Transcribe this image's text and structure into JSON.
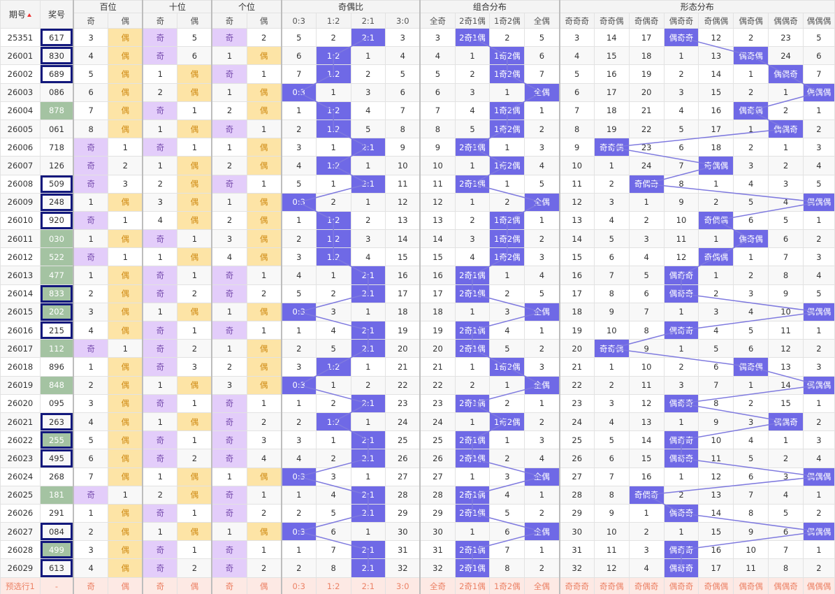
{
  "header": {
    "issue": "期号",
    "award": "奖号",
    "groups": [
      "百位",
      "十位",
      "个位",
      "奇偶比",
      "组合分布",
      "形态分布"
    ],
    "sub": [
      "奇",
      "偶",
      "奇",
      "偶",
      "奇",
      "偶",
      "0:3",
      "1:2",
      "2:1",
      "3:0",
      "全奇",
      "2奇1偶",
      "1奇2偶",
      "全偶",
      "奇奇奇",
      "奇奇偶",
      "奇偶奇",
      "偶奇奇",
      "奇偶偶",
      "偶奇偶",
      "偶偶奇",
      "偶偶偶"
    ]
  },
  "labels": {
    "odd": "奇",
    "even": "偶"
  },
  "rows": [
    {
      "issue": "25351",
      "award": "617",
      "hl": false,
      "sel": true,
      "cells": [
        "3",
        "偶",
        "奇",
        "5",
        "奇",
        "2",
        "5",
        "2",
        "2:1",
        "3",
        "3",
        "2奇1偶",
        "2",
        "5",
        "3",
        "14",
        "17",
        "偶奇奇",
        "12",
        "2",
        "23",
        "5"
      ]
    },
    {
      "issue": "26001",
      "award": "830",
      "hl": false,
      "sel": true,
      "cells": [
        "4",
        "偶",
        "奇",
        "6",
        "1",
        "偶",
        "6",
        "1:2",
        "1",
        "4",
        "4",
        "1",
        "1奇2偶",
        "6",
        "4",
        "15",
        "18",
        "1",
        "13",
        "偶奇偶",
        "24",
        "6"
      ]
    },
    {
      "issue": "26002",
      "award": "689",
      "hl": false,
      "sel": true,
      "cells": [
        "5",
        "偶",
        "1",
        "偶",
        "奇",
        "1",
        "7",
        "1:2",
        "2",
        "5",
        "5",
        "2",
        "1奇2偶",
        "7",
        "5",
        "16",
        "19",
        "2",
        "14",
        "1",
        "偶偶奇",
        "7"
      ]
    },
    {
      "issue": "26003",
      "award": "086",
      "hl": false,
      "sel": false,
      "cells": [
        "6",
        "偶",
        "2",
        "偶",
        "1",
        "偶",
        "0:3",
        "1",
        "3",
        "6",
        "6",
        "3",
        "1",
        "全偶",
        "6",
        "17",
        "20",
        "3",
        "15",
        "2",
        "1",
        "偶偶偶"
      ]
    },
    {
      "issue": "26004",
      "award": "878",
      "hl": true,
      "sel": false,
      "cells": [
        "7",
        "偶",
        "奇",
        "1",
        "2",
        "偶",
        "1",
        "1:2",
        "4",
        "7",
        "7",
        "4",
        "1奇2偶",
        "1",
        "7",
        "18",
        "21",
        "4",
        "16",
        "偶奇偶",
        "2",
        "1"
      ]
    },
    {
      "issue": "26005",
      "award": "061",
      "hl": false,
      "sel": false,
      "cells": [
        "8",
        "偶",
        "1",
        "偶",
        "奇",
        "1",
        "2",
        "1:2",
        "5",
        "8",
        "8",
        "5",
        "1奇2偶",
        "2",
        "8",
        "19",
        "22",
        "5",
        "17",
        "1",
        "偶偶奇",
        "2"
      ]
    },
    {
      "issue": "26006",
      "award": "718",
      "hl": false,
      "sel": false,
      "cells": [
        "奇",
        "1",
        "奇",
        "1",
        "1",
        "偶",
        "3",
        "1",
        "2:1",
        "9",
        "9",
        "2奇1偶",
        "1",
        "3",
        "9",
        "奇奇偶",
        "23",
        "6",
        "18",
        "2",
        "1",
        "3"
      ]
    },
    {
      "issue": "26007",
      "award": "126",
      "hl": false,
      "sel": false,
      "cells": [
        "奇",
        "2",
        "1",
        "偶",
        "2",
        "偶",
        "4",
        "1:2",
        "1",
        "10",
        "10",
        "1",
        "1奇2偶",
        "4",
        "10",
        "1",
        "24",
        "7",
        "奇偶偶",
        "3",
        "2",
        "4"
      ]
    },
    {
      "issue": "26008",
      "award": "509",
      "hl": false,
      "sel": true,
      "cells": [
        "奇",
        "3",
        "2",
        "偶",
        "奇",
        "1",
        "5",
        "1",
        "2:1",
        "11",
        "11",
        "2奇1偶",
        "1",
        "5",
        "11",
        "2",
        "奇偶奇",
        "8",
        "1",
        "4",
        "3",
        "5"
      ]
    },
    {
      "issue": "26009",
      "award": "248",
      "hl": false,
      "sel": true,
      "cells": [
        "1",
        "偶",
        "3",
        "偶",
        "1",
        "偶",
        "0:3",
        "2",
        "1",
        "12",
        "12",
        "1",
        "2",
        "全偶",
        "12",
        "3",
        "1",
        "9",
        "2",
        "5",
        "4",
        "偶偶偶"
      ]
    },
    {
      "issue": "26010",
      "award": "920",
      "hl": false,
      "sel": true,
      "cells": [
        "奇",
        "1",
        "4",
        "偶",
        "2",
        "偶",
        "1",
        "1:2",
        "2",
        "13",
        "13",
        "2",
        "1奇2偶",
        "1",
        "13",
        "4",
        "2",
        "10",
        "奇偶偶",
        "6",
        "5",
        "1"
      ]
    },
    {
      "issue": "26011",
      "award": "030",
      "hl": true,
      "sel": false,
      "cells": [
        "1",
        "偶",
        "奇",
        "1",
        "3",
        "偶",
        "2",
        "1:2",
        "3",
        "14",
        "14",
        "3",
        "1奇2偶",
        "2",
        "14",
        "5",
        "3",
        "11",
        "1",
        "偶奇偶",
        "6",
        "2"
      ]
    },
    {
      "issue": "26012",
      "award": "522",
      "hl": true,
      "sel": false,
      "cells": [
        "奇",
        "1",
        "1",
        "偶",
        "4",
        "偶",
        "3",
        "1:2",
        "4",
        "15",
        "15",
        "4",
        "1奇2偶",
        "3",
        "15",
        "6",
        "4",
        "12",
        "奇偶偶",
        "1",
        "7",
        "3"
      ]
    },
    {
      "issue": "26013",
      "award": "477",
      "hl": true,
      "sel": false,
      "cells": [
        "1",
        "偶",
        "奇",
        "1",
        "奇",
        "1",
        "4",
        "1",
        "2:1",
        "16",
        "16",
        "2奇1偶",
        "1",
        "4",
        "16",
        "7",
        "5",
        "偶奇奇",
        "1",
        "2",
        "8",
        "4"
      ]
    },
    {
      "issue": "26014",
      "award": "833",
      "hl": true,
      "sel": true,
      "cells": [
        "2",
        "偶",
        "奇",
        "2",
        "奇",
        "2",
        "5",
        "2",
        "2:1",
        "17",
        "17",
        "2奇1偶",
        "2",
        "5",
        "17",
        "8",
        "6",
        "偶奇奇",
        "2",
        "3",
        "9",
        "5"
      ]
    },
    {
      "issue": "26015",
      "award": "202",
      "hl": true,
      "sel": true,
      "cells": [
        "3",
        "偶",
        "1",
        "偶",
        "1",
        "偶",
        "0:3",
        "3",
        "1",
        "18",
        "18",
        "1",
        "3",
        "全偶",
        "18",
        "9",
        "7",
        "1",
        "3",
        "4",
        "10",
        "偶偶偶"
      ]
    },
    {
      "issue": "26016",
      "award": "215",
      "hl": false,
      "sel": true,
      "cells": [
        "4",
        "偶",
        "奇",
        "1",
        "奇",
        "1",
        "1",
        "4",
        "2:1",
        "19",
        "19",
        "2奇1偶",
        "4",
        "1",
        "19",
        "10",
        "8",
        "偶奇奇",
        "4",
        "5",
        "11",
        "1"
      ]
    },
    {
      "issue": "26017",
      "award": "112",
      "hl": true,
      "sel": false,
      "cells": [
        "奇",
        "1",
        "奇",
        "2",
        "1",
        "偶",
        "2",
        "5",
        "2:1",
        "20",
        "20",
        "2奇1偶",
        "5",
        "2",
        "20",
        "奇奇偶",
        "9",
        "1",
        "5",
        "6",
        "12",
        "2"
      ]
    },
    {
      "issue": "26018",
      "award": "896",
      "hl": false,
      "sel": false,
      "cells": [
        "1",
        "偶",
        "奇",
        "3",
        "2",
        "偶",
        "3",
        "1:2",
        "1",
        "21",
        "21",
        "1",
        "1奇2偶",
        "3",
        "21",
        "1",
        "10",
        "2",
        "6",
        "偶奇偶",
        "13",
        "3"
      ]
    },
    {
      "issue": "26019",
      "award": "848",
      "hl": true,
      "sel": false,
      "cells": [
        "2",
        "偶",
        "1",
        "偶",
        "3",
        "偶",
        "0:3",
        "1",
        "2",
        "22",
        "22",
        "2",
        "1",
        "全偶",
        "22",
        "2",
        "11",
        "3",
        "7",
        "1",
        "14",
        "偶偶偶"
      ]
    },
    {
      "issue": "26020",
      "award": "095",
      "hl": false,
      "sel": false,
      "cells": [
        "3",
        "偶",
        "奇",
        "1",
        "奇",
        "1",
        "1",
        "2",
        "2:1",
        "23",
        "23",
        "2奇1偶",
        "2",
        "1",
        "23",
        "3",
        "12",
        "偶奇奇",
        "8",
        "2",
        "15",
        "1"
      ]
    },
    {
      "issue": "26021",
      "award": "263",
      "hl": false,
      "sel": true,
      "cells": [
        "4",
        "偶",
        "1",
        "偶",
        "奇",
        "2",
        "2",
        "1:2",
        "1",
        "24",
        "24",
        "1",
        "1奇2偶",
        "2",
        "24",
        "4",
        "13",
        "1",
        "9",
        "3",
        "偶偶奇",
        "2"
      ]
    },
    {
      "issue": "26022",
      "award": "255",
      "hl": true,
      "sel": true,
      "cells": [
        "5",
        "偶",
        "奇",
        "1",
        "奇",
        "3",
        "3",
        "1",
        "2:1",
        "25",
        "25",
        "2奇1偶",
        "1",
        "3",
        "25",
        "5",
        "14",
        "偶奇奇",
        "10",
        "4",
        "1",
        "3"
      ]
    },
    {
      "issue": "26023",
      "award": "495",
      "hl": false,
      "sel": true,
      "cells": [
        "6",
        "偶",
        "奇",
        "2",
        "奇",
        "4",
        "4",
        "2",
        "2:1",
        "26",
        "26",
        "2奇1偶",
        "2",
        "4",
        "26",
        "6",
        "15",
        "偶奇奇",
        "11",
        "5",
        "2",
        "4"
      ]
    },
    {
      "issue": "26024",
      "award": "268",
      "hl": false,
      "sel": false,
      "cells": [
        "7",
        "偶",
        "1",
        "偶",
        "1",
        "偶",
        "0:3",
        "3",
        "1",
        "27",
        "27",
        "1",
        "3",
        "全偶",
        "27",
        "7",
        "16",
        "1",
        "12",
        "6",
        "3",
        "偶偶偶"
      ]
    },
    {
      "issue": "26025",
      "award": "181",
      "hl": true,
      "sel": false,
      "cells": [
        "奇",
        "1",
        "2",
        "偶",
        "奇",
        "1",
        "1",
        "4",
        "2:1",
        "28",
        "28",
        "2奇1偶",
        "4",
        "1",
        "28",
        "8",
        "奇偶奇",
        "2",
        "13",
        "7",
        "4",
        "1"
      ]
    },
    {
      "issue": "26026",
      "award": "291",
      "hl": false,
      "sel": false,
      "cells": [
        "1",
        "偶",
        "奇",
        "1",
        "奇",
        "2",
        "2",
        "5",
        "2:1",
        "29",
        "29",
        "2奇1偶",
        "5",
        "2",
        "29",
        "9",
        "1",
        "偶奇奇",
        "14",
        "8",
        "5",
        "2"
      ]
    },
    {
      "issue": "26027",
      "award": "084",
      "hl": false,
      "sel": true,
      "cells": [
        "2",
        "偶",
        "1",
        "偶",
        "1",
        "偶",
        "0:3",
        "6",
        "1",
        "30",
        "30",
        "1",
        "6",
        "全偶",
        "30",
        "10",
        "2",
        "1",
        "15",
        "9",
        "6",
        "偶偶偶"
      ]
    },
    {
      "issue": "26028",
      "award": "499",
      "hl": true,
      "sel": true,
      "cells": [
        "3",
        "偶",
        "奇",
        "1",
        "奇",
        "1",
        "1",
        "7",
        "2:1",
        "31",
        "31",
        "2奇1偶",
        "7",
        "1",
        "31",
        "11",
        "3",
        "偶奇奇",
        "16",
        "10",
        "7",
        "1"
      ]
    },
    {
      "issue": "26029",
      "award": "613",
      "hl": false,
      "sel": true,
      "cells": [
        "4",
        "偶",
        "奇",
        "2",
        "奇",
        "2",
        "2",
        "8",
        "2:1",
        "32",
        "32",
        "2奇1偶",
        "8",
        "2",
        "32",
        "12",
        "4",
        "偶奇奇",
        "17",
        "11",
        "8",
        "2"
      ]
    }
  ],
  "footer": {
    "issue": "预选行1",
    "award": "-"
  },
  "colors": {
    "odd_bg": "#e3cdfa",
    "even_bg": "#fde4a6",
    "hit_bg": "#6f69e6",
    "award_hl": "#a4c3a2",
    "select_border": "#12187c",
    "line": "#7f7adf",
    "footer_text": "#ec8266"
  }
}
